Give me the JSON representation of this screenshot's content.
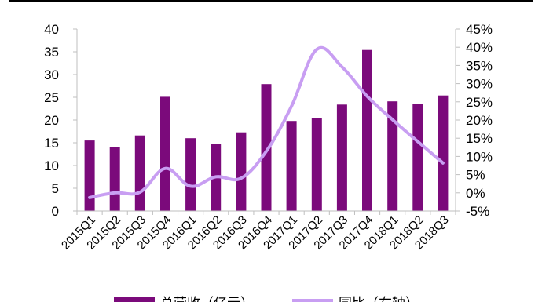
{
  "chart_data": {
    "type": "bar",
    "categories": [
      "2015Q1",
      "2015Q2",
      "2015Q3",
      "2015Q4",
      "2016Q1",
      "2016Q2",
      "2016Q3",
      "2016Q4",
      "2017Q1",
      "2017Q2",
      "2017Q3",
      "2017Q4",
      "2018Q1",
      "2018Q2",
      "2018Q3"
    ],
    "series": [
      {
        "name": "总营收（亿元）",
        "kind": "bar",
        "axis": "left",
        "color": "#7b0a7b",
        "values": [
          15.5,
          14.0,
          16.6,
          25.1,
          16.0,
          14.7,
          17.3,
          27.9,
          19.8,
          20.4,
          23.4,
          35.4,
          24.1,
          23.6,
          25.4
        ]
      },
      {
        "name": "同比（右轴）",
        "kind": "line",
        "axis": "right",
        "color": "#c89ef2",
        "values": [
          -1.3,
          0.0,
          0.2,
          6.7,
          1.8,
          4.4,
          4.0,
          11.4,
          23.8,
          39.4,
          34.6,
          26.5,
          20.1,
          14.1,
          8.2
        ]
      }
    ],
    "y_left": {
      "ylim": [
        0,
        40
      ],
      "ticks": [
        "0",
        "5",
        "10",
        "15",
        "20",
        "25",
        "30",
        "35",
        "40"
      ],
      "tick_values": [
        0,
        5,
        10,
        15,
        20,
        25,
        30,
        35,
        40
      ]
    },
    "y_right": {
      "ylim": [
        -5,
        45
      ],
      "ticks": [
        "-5%",
        "0%",
        "5%",
        "10%",
        "15%",
        "20%",
        "25%",
        "30%",
        "35%",
        "40%",
        "45%"
      ],
      "tick_values": [
        -5,
        0,
        5,
        10,
        15,
        20,
        25,
        30,
        35,
        40,
        45
      ]
    },
    "grid": false,
    "legend": "bottom"
  }
}
